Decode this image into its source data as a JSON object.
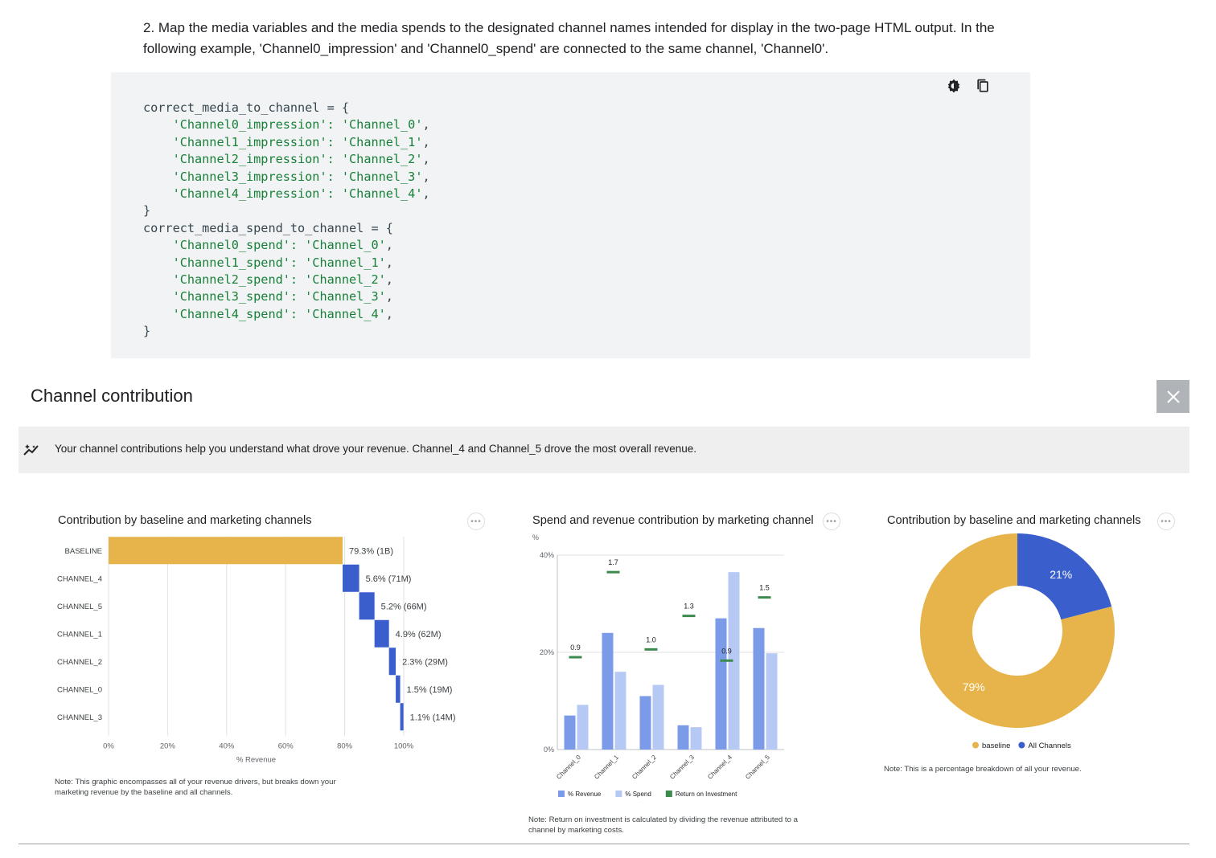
{
  "doc": {
    "paragraph": "2. Map the media variables and the media spends to the designated channel names intended for display in the two-page HTML output. In the following example, 'Channel0_impression' and 'Channel0_spend' are connected to the same channel, 'Channel0'."
  },
  "code": {
    "theme_icon": "theme-toggle-icon",
    "copy_icon": "copy-icon",
    "lines": [
      {
        "pre": "correct_media_to_channel = {",
        "str": "",
        "post": ""
      },
      {
        "pre": "    ",
        "str": "'Channel0_impression': 'Channel_0'",
        "post": ","
      },
      {
        "pre": "    ",
        "str": "'Channel1_impression': 'Channel_1'",
        "post": ","
      },
      {
        "pre": "    ",
        "str": "'Channel2_impression': 'Channel_2'",
        "post": ","
      },
      {
        "pre": "    ",
        "str": "'Channel3_impression': 'Channel_3'",
        "post": ","
      },
      {
        "pre": "    ",
        "str": "'Channel4_impression': 'Channel_4'",
        "post": ","
      },
      {
        "pre": "}",
        "str": "",
        "post": ""
      },
      {
        "pre": "correct_media_spend_to_channel = {",
        "str": "",
        "post": ""
      },
      {
        "pre": "    ",
        "str": "'Channel0_spend': 'Channel_0'",
        "post": ","
      },
      {
        "pre": "    ",
        "str": "'Channel1_spend': 'Channel_1'",
        "post": ","
      },
      {
        "pre": "    ",
        "str": "'Channel2_spend': 'Channel_2'",
        "post": ","
      },
      {
        "pre": "    ",
        "str": "'Channel3_spend': 'Channel_3'",
        "post": ","
      },
      {
        "pre": "    ",
        "str": "'Channel4_spend': 'Channel_4'",
        "post": ","
      },
      {
        "pre": "}",
        "str": "",
        "post": ""
      }
    ]
  },
  "section": {
    "title": "Channel contribution",
    "insight": "Your channel contributions help you understand what drove your revenue. Channel_4 and Channel_5 drove the most overall revenue."
  },
  "colors": {
    "baseline": "#e6b44a",
    "channel": "#3a5fcd",
    "revenue": "#7b9be8",
    "spend": "#b6c8f4",
    "roi": "#3c8a4e"
  },
  "chart_data": [
    {
      "type": "bar",
      "subtype": "waterfall",
      "title": "Contribution by baseline and marketing channels",
      "xlabel": "% Revenue",
      "xlim": [
        0,
        100
      ],
      "xticks": [
        "0%",
        "20%",
        "40%",
        "60%",
        "80%",
        "100%"
      ],
      "categories": [
        "BASELINE",
        "CHANNEL_4",
        "CHANNEL_5",
        "CHANNEL_1",
        "CHANNEL_2",
        "CHANNEL_0",
        "CHANNEL_3"
      ],
      "values": [
        79.3,
        5.6,
        5.2,
        4.9,
        2.3,
        1.5,
        1.1
      ],
      "labels": [
        "79.3% (1B)",
        "5.6% (71M)",
        "5.2% (66M)",
        "4.9% (62M)",
        "2.3% (29M)",
        "1.5% (19M)",
        "1.1% (14M)"
      ],
      "note": "Note: This graphic encompasses all of your revenue drivers, but breaks down your marketing revenue by the baseline and all channels."
    },
    {
      "type": "bar",
      "title": "Spend and revenue contribution by marketing channel",
      "yunit": "%",
      "ylim": [
        0,
        40
      ],
      "yticks": [
        "0%",
        "20%",
        "40%"
      ],
      "categories": [
        "Channel_0",
        "Channel_1",
        "Channel_2",
        "Channel_3",
        "Channel_4",
        "Channel_5"
      ],
      "series": [
        {
          "name": "% Revenue",
          "values": [
            7,
            24,
            11,
            5,
            27,
            25
          ]
        },
        {
          "name": "% Spend",
          "values": [
            9.2,
            16,
            13.3,
            4.6,
            36.5,
            19.8
          ]
        },
        {
          "name": "Return on Investment",
          "values": [
            0.9,
            1.7,
            1.0,
            1.3,
            0.9,
            1.5
          ],
          "labels": [
            "0.9",
            "1.7",
            "1.0",
            "1.3",
            "0.9",
            "1.5"
          ],
          "marker_level": [
            19,
            36.5,
            20.6,
            27.5,
            18.3,
            31.3
          ]
        }
      ],
      "legend": "bottom",
      "note": "Note: Return on investment is calculated by dividing the revenue attributed to a channel by marketing costs."
    },
    {
      "type": "pie",
      "subtype": "donut",
      "title": "Contribution by baseline and marketing channels",
      "slices": [
        {
          "name": "baseline",
          "value": 79,
          "label": "79%"
        },
        {
          "name": "All Channels",
          "value": 21,
          "label": "21%"
        }
      ],
      "legend": "bottom",
      "note": "Note: This is a percentage breakdown of all your revenue."
    }
  ]
}
